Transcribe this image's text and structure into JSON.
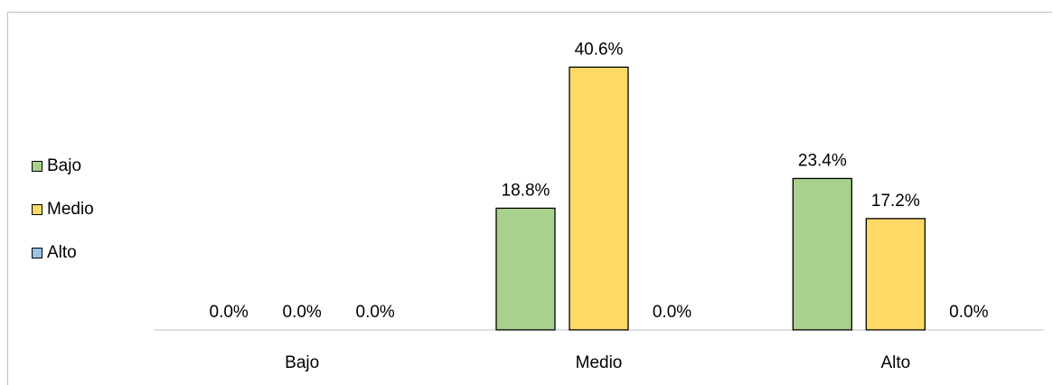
{
  "chart_data": {
    "type": "bar",
    "categories": [
      "Bajo",
      "Medio",
      "Alto"
    ],
    "series": [
      {
        "name": "Bajo",
        "color": "#a9d18e",
        "values": [
          0.0,
          18.8,
          23.4
        ]
      },
      {
        "name": "Medio",
        "color": "#ffd966",
        "values": [
          0.0,
          40.6,
          17.2
        ]
      },
      {
        "name": "Alto",
        "color": "#9dc3e6",
        "values": [
          0.0,
          0.0,
          0.0
        ]
      }
    ],
    "data_labels": [
      [
        "0.0%",
        "18.8%",
        "23.4%"
      ],
      [
        "0.0%",
        "40.6%",
        "17.2%"
      ],
      [
        "0.0%",
        "0.0%",
        "0.0%"
      ]
    ],
    "title": "",
    "xlabel": "",
    "ylabel": "",
    "ylim": [
      0,
      45
    ],
    "grid": false,
    "legend_position": "left"
  }
}
